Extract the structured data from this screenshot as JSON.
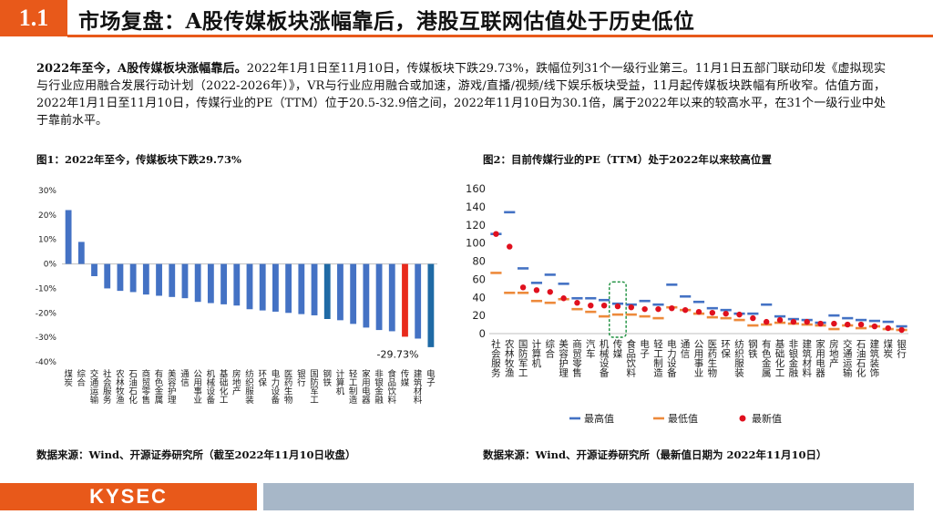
{
  "header": {
    "section_number": "1.1",
    "title": "市场复盘：A股传媒板块涨幅靠后，港股互联网估值处于历史低位"
  },
  "summary": {
    "lead": "2022年至今，A股传媒板块涨幅靠后。",
    "body": "2022年1月1日至11月10日，传媒板块下跌29.73%，跌幅位列31个一级行业第三。11月1日五部门联动印发《虚拟现实与行业应用融合发展行动计划（2022-2026年）》，VR与行业应用融合或加速，游戏/直播/视频/线下娱乐板块受益，11月起传媒板块跌幅有所收窄。估值方面，2022年1月1日至11月10日，传媒行业的PE（TTM）位于20.5-32.9倍之间，2022年11月10日为30.1倍，属于2022年以来的较高水平，在31个一级行业中处于靠前水平。"
  },
  "figure1": {
    "title": "图1：2022年至今，传媒板块下跌29.73%",
    "source": "数据来源：Wind、开源证券研究所（截至2022年11月10日收盘）"
  },
  "figure2": {
    "title": "图2：目前传媒行业的PE（TTM）处于2022年以来较高位置",
    "source": "数据来源：Wind、开源证券研究所（最新值日期为 2022年11月10日）"
  },
  "footer": {
    "logo": "KYSEC"
  },
  "colors": {
    "accent": "#e8591a",
    "bar_default": "#4472c4",
    "bar_dark": "#1f6aa5",
    "bar_media": "#e82a1c",
    "pe_max": "#4472c4",
    "pe_min": "#ed8a3b",
    "pe_latest": "#e0101e"
  },
  "chart_data": [
    {
      "type": "bar",
      "title": "图1：2022年至今，传媒板块下跌29.73%",
      "ylim": [
        -40,
        30
      ],
      "yticks": [
        30,
        20,
        10,
        0,
        -10,
        -20,
        -30,
        -40
      ],
      "tick_suffix": "%",
      "categories": [
        "煤炭",
        "综合",
        "交通运输",
        "社会服务",
        "农林牧渔",
        "石油石化",
        "商贸零售",
        "有色金属",
        "美容护理",
        "通信",
        "公用事业",
        "机械设备",
        "基础化工",
        "房地产",
        "纺织服装",
        "环保",
        "电力设备",
        "医药生物",
        "银行",
        "国防军工",
        "钢铁",
        "计算机",
        "轻工制造",
        "家用电器",
        "非银金融",
        "食品饮料",
        "传媒",
        "建筑材料",
        "电子"
      ],
      "values": [
        22.0,
        9.0,
        -5.0,
        -10.0,
        -11.0,
        -11.5,
        -12.5,
        -13.0,
        -13.5,
        -14.0,
        -15.5,
        -16.0,
        -16.5,
        -17.0,
        -18.5,
        -19.0,
        -19.5,
        -20.0,
        -20.5,
        -21.0,
        -22.5,
        -23.0,
        -24.5,
        -26.0,
        -27.0,
        -27.5,
        -29.73,
        -30.5,
        -34.0
      ],
      "highlight": {
        "index": 26,
        "label": "-29.73%"
      },
      "dark_indices": [
        20,
        28
      ]
    },
    {
      "type": "scatter",
      "title": "图2：目前传媒行业的PE（TTM）处于2022年以来较高位置",
      "ylim": [
        0,
        160
      ],
      "yticks": [
        160,
        140,
        120,
        100,
        80,
        60,
        40,
        20,
        0
      ],
      "categories": [
        "社会服务",
        "农林牧渔",
        "国防军工",
        "计算机",
        "综合",
        "美容护理",
        "商贸零售",
        "汽车",
        "机械设备",
        "传媒",
        "食品饮料",
        "电子",
        "轻工制造",
        "电力设备",
        "通信",
        "公用事业",
        "医药生物",
        "环保",
        "纺织服装",
        "钢铁",
        "有色金属",
        "基础化工",
        "非银金融",
        "建筑材料",
        "家用电器",
        "房地产",
        "交通运输",
        "石油石化",
        "建筑装饰",
        "煤炭",
        "银行"
      ],
      "series": [
        {
          "name": "最高值",
          "marker": "dash",
          "values": [
            110,
            134,
            72,
            56,
            65,
            55,
            39,
            39,
            37,
            33,
            32,
            36,
            32,
            54,
            41,
            35,
            28,
            26,
            22,
            22,
            32,
            19,
            16,
            15,
            12,
            20,
            17,
            15,
            14,
            13,
            8
          ]
        },
        {
          "name": "最低值",
          "marker": "dash",
          "values": [
            67,
            45,
            45,
            36,
            34,
            38,
            27,
            24,
            19,
            21,
            21,
            19,
            17,
            29,
            26,
            22,
            18,
            17,
            15,
            9,
            10,
            12,
            11,
            10,
            9,
            5,
            9,
            6,
            8,
            5,
            4
          ]
        },
        {
          "name": "最新值",
          "marker": "dot",
          "values": [
            110,
            96,
            51,
            48,
            46,
            39,
            34,
            31,
            31,
            30.1,
            29,
            27,
            27,
            28,
            26,
            24,
            23,
            22,
            21,
            17,
            13,
            15,
            13,
            13,
            11,
            11,
            10,
            10,
            8,
            6,
            4
          ]
        }
      ],
      "highlight": {
        "index": 9
      },
      "legend": "bottom"
    }
  ]
}
